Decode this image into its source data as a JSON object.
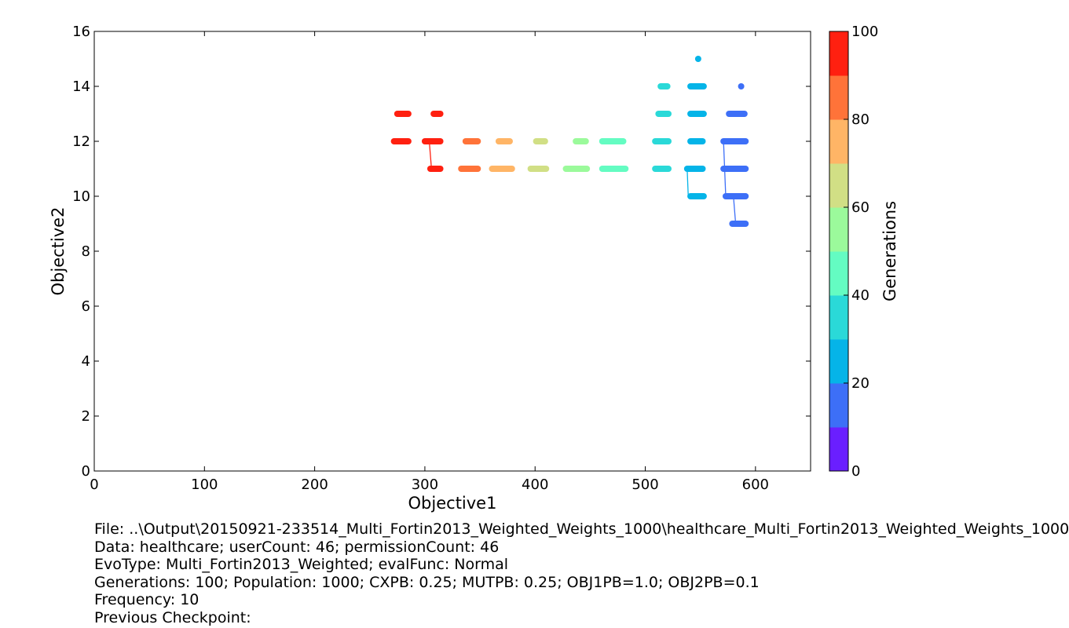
{
  "chart_data": {
    "type": "scatter",
    "xlabel": "Objective1",
    "ylabel": "Objective2",
    "xlim": [
      0,
      650
    ],
    "ylim": [
      0,
      16
    ],
    "xticks": [
      0,
      100,
      200,
      300,
      400,
      500,
      600
    ],
    "yticks": [
      0,
      2,
      4,
      6,
      8,
      10,
      12,
      14,
      16
    ],
    "colorbar": {
      "label": "Generations",
      "range": [
        0,
        100
      ],
      "ticks": [
        0,
        20,
        40,
        60,
        80,
        100
      ],
      "colors": [
        "#6a1fff",
        "#3d6ff7",
        "#05b4e8",
        "#2ad9d8",
        "#64fcc2",
        "#9bfa9b",
        "#d1df85",
        "#ffb566",
        "#ff7339",
        "#ff2010"
      ]
    },
    "series": [
      {
        "generation": 100,
        "segments": [
          [
            272,
            285,
            12
          ],
          [
            275,
            285,
            13
          ]
        ]
      },
      {
        "generation": 90,
        "segments": [
          [
            300,
            314,
            12
          ],
          [
            305,
            314,
            11
          ],
          [
            308,
            314,
            13
          ]
        ]
      },
      {
        "generation": 80,
        "segments": [
          [
            333,
            348,
            11
          ],
          [
            337,
            348,
            12
          ]
        ]
      },
      {
        "generation": 70,
        "segments": [
          [
            361,
            379,
            11
          ],
          [
            367,
            377,
            12
          ]
        ]
      },
      {
        "generation": 60,
        "segments": [
          [
            396,
            410,
            11
          ],
          [
            401,
            409,
            12
          ]
        ]
      },
      {
        "generation": 50,
        "segments": [
          [
            428,
            447,
            11
          ],
          [
            437,
            446,
            12
          ]
        ]
      },
      {
        "generation": 40,
        "segments": [
          [
            461,
            482,
            11
          ],
          [
            461,
            480,
            12
          ]
        ]
      },
      {
        "generation": 30,
        "segments": [
          [
            509,
            521,
            11
          ],
          [
            509,
            521,
            12
          ],
          [
            512,
            521,
            13
          ],
          [
            514,
            520,
            14
          ]
        ]
      },
      {
        "generation": 20,
        "segments": [
          [
            538,
            552,
            11
          ],
          [
            541,
            552,
            12
          ],
          [
            541,
            553,
            13
          ],
          [
            541,
            553,
            14
          ],
          [
            541,
            553,
            10
          ],
          [
            548,
            548,
            15
          ]
        ]
      },
      {
        "generation": 10,
        "segments": [
          [
            571,
            591,
            12
          ],
          [
            571,
            591,
            11
          ],
          [
            573,
            591,
            10
          ],
          [
            576,
            590,
            13
          ],
          [
            579,
            591,
            9
          ],
          [
            587,
            587,
            14
          ]
        ]
      }
    ],
    "connectors": [
      {
        "generation": 90,
        "x": [
          304,
          306
        ],
        "y": [
          12,
          11
        ]
      },
      {
        "generation": 20,
        "x": [
          538,
          539
        ],
        "y": [
          11,
          10
        ]
      },
      {
        "generation": 10,
        "x": [
          571,
          573
        ],
        "y": [
          12,
          10
        ]
      },
      {
        "generation": 10,
        "x": [
          580,
          582
        ],
        "y": [
          10,
          9
        ]
      }
    ]
  },
  "info": {
    "lines": [
      "File: ..\\Output\\20150921-233514_Multi_Fortin2013_Weighted_Weights_1000\\healthcare_Multi_Fortin2013_Weighted_Weights_1000",
      "Data: healthcare; userCount: 46; permissionCount: 46",
      "EvoType: Multi_Fortin2013_Weighted; evalFunc: Normal",
      "Generations: 100; Population: 1000; CXPB: 0.25; MUTPB: 0.25; OBJ1PB=1.0; OBJ2PB=0.1",
      "Frequency: 10",
      "Previous Checkpoint:"
    ]
  }
}
